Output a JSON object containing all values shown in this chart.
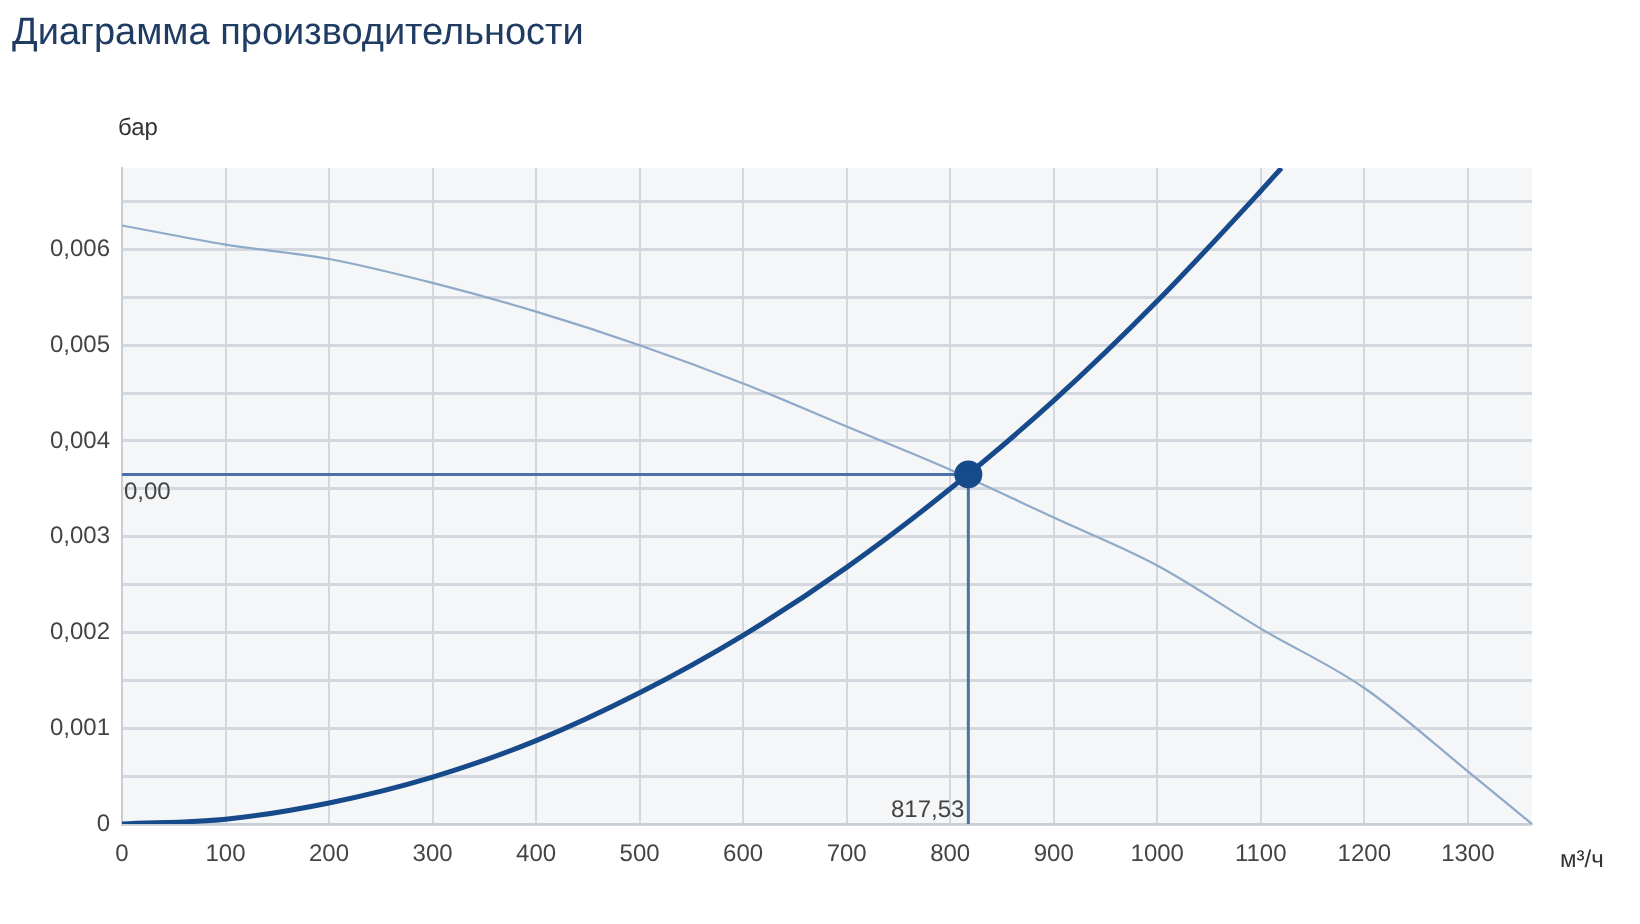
{
  "chart_data": {
    "type": "line",
    "title": "Диаграмма производительности",
    "xlabel": "м³/ч",
    "ylabel": "бар",
    "xlim": [
      0,
      1362
    ],
    "xticks": [
      0,
      100,
      200,
      300,
      400,
      500,
      600,
      700,
      800,
      900,
      1000,
      1100,
      1200,
      1300
    ],
    "ylim": [
      0,
      0.00685
    ],
    "yticks": [
      0,
      {
        "value": 0.0005,
        "label": null
      },
      {
        "value": 0.001,
        "label": "0,001"
      },
      {
        "value": 0.0015,
        "label": null
      },
      {
        "value": 0.002,
        "label": "0,002"
      },
      {
        "value": 0.0025,
        "label": null
      },
      {
        "value": 0.003,
        "label": "0,003"
      },
      {
        "value": 0.0035,
        "label": null
      },
      {
        "value": 0.004,
        "label": "0,004"
      },
      {
        "value": 0.0045,
        "label": null
      },
      {
        "value": 0.005,
        "label": "0,005"
      },
      {
        "value": 0.0055,
        "label": null
      },
      {
        "value": 0.006,
        "label": "0,006"
      },
      {
        "value": 0.0065,
        "label": null
      }
    ],
    "grid": true,
    "series": [
      {
        "color": "#8fa9c9",
        "x": [
          0,
          100,
          200,
          300,
          400,
          500,
          600,
          700,
          800,
          900,
          1000,
          1100,
          1200,
          1300,
          1362
        ],
        "values": [
          0.00625,
          0.00605,
          0.0059,
          0.00565,
          0.00535,
          0.005,
          0.0046,
          0.00415,
          0.0037,
          0.0032,
          0.0027,
          0.00204,
          0.00142,
          0.00055,
          0
        ]
      },
      {
        "color": "#174a8b",
        "x": [
          0,
          100,
          200,
          300,
          400,
          500,
          600,
          700,
          800,
          900,
          1000,
          1100,
          1120
        ],
        "values": [
          0,
          5e-05,
          0.00022,
          0.00049,
          0.00087,
          0.00137,
          0.00197,
          0.00268,
          0.0035,
          0.00442,
          0.00546,
          0.00661,
          0.00685
        ]
      },
      {
        "type": "scatter",
        "color": "#174a8b",
        "marker": "circle",
        "x": [
          817.53
        ],
        "values": [
          0.00365
        ]
      }
    ],
    "ref_lines": [
      {
        "axis": "y",
        "value": 0.00365,
        "label": "0,00",
        "color": "#4a72a8"
      },
      {
        "axis": "x",
        "value": 817.53,
        "label": "817,53",
        "color": "#4a72a8"
      }
    ]
  }
}
